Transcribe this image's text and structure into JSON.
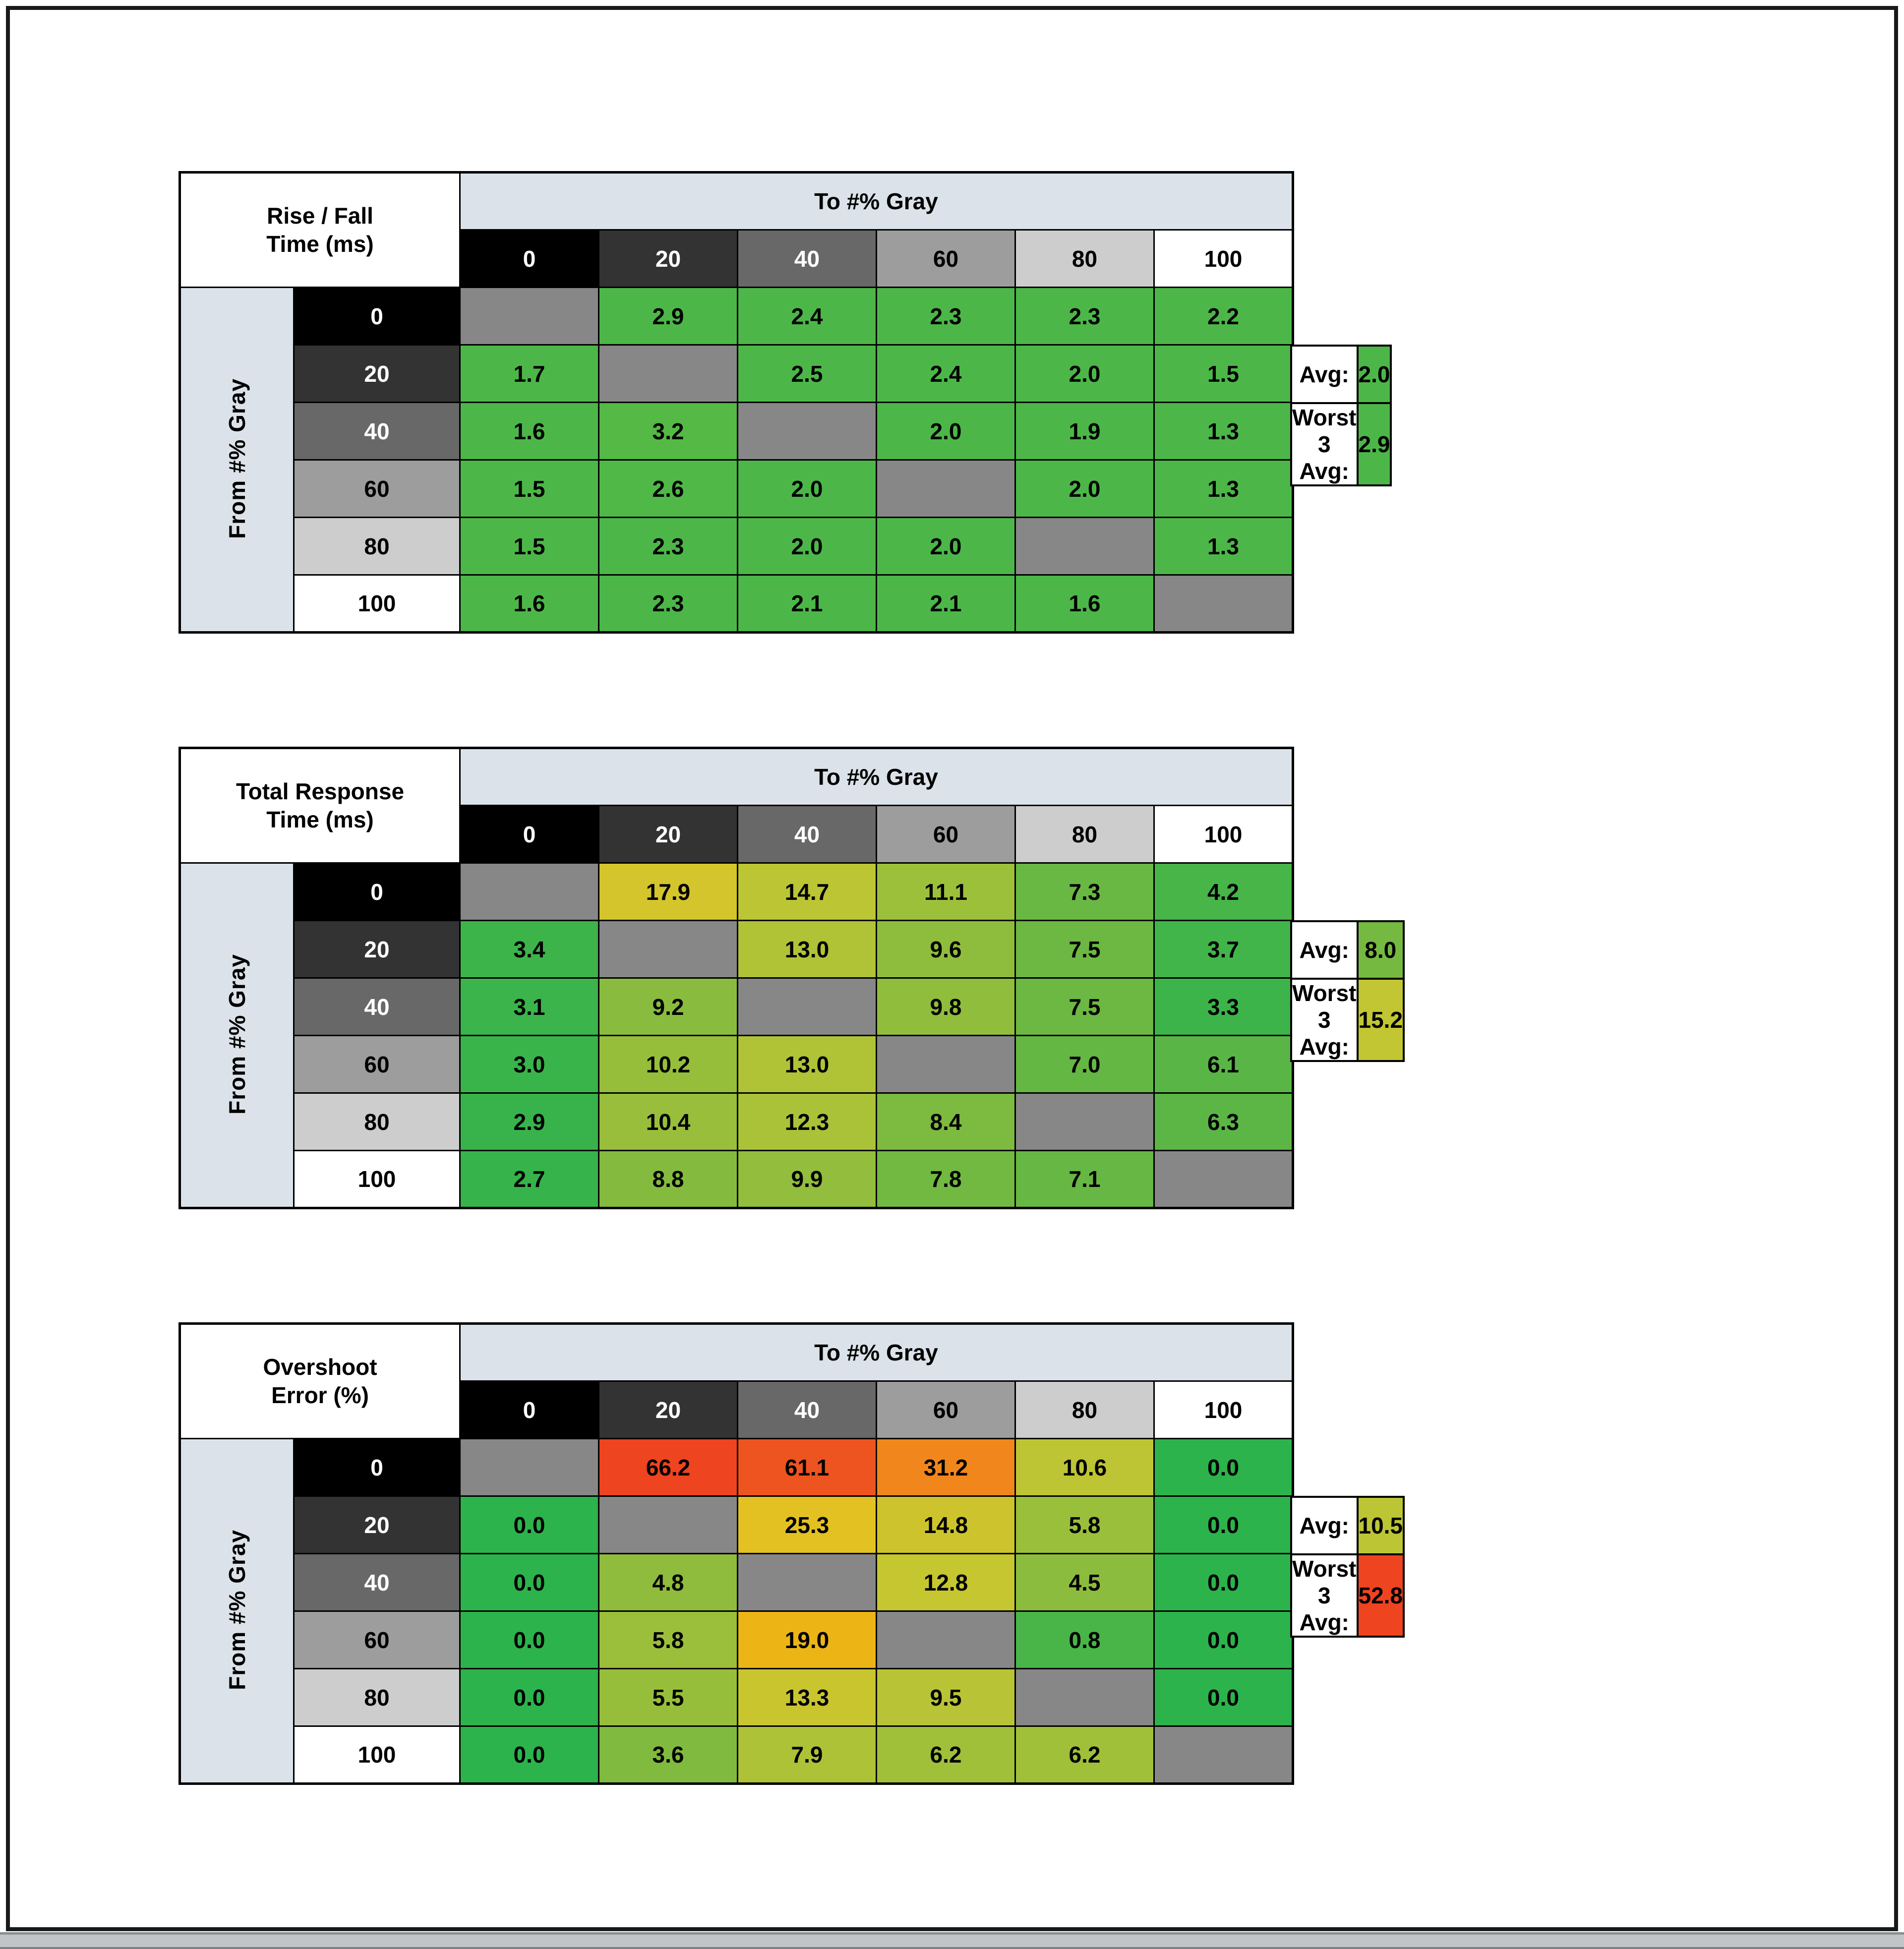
{
  "page": {
    "background": "#ffffff",
    "border_color": "#191919",
    "bottom_bar_color": "#c2c5c7"
  },
  "chart_data": {
    "type": "heatmap",
    "header_bg": "#dbe2e9",
    "diagonal_color": "#878787",
    "gray_levels": [
      "0",
      "20",
      "40",
      "60",
      "80",
      "100"
    ],
    "level_colors": [
      "#000000",
      "#333333",
      "#686868",
      "#9d9d9d",
      "#cdcdcd",
      "#ffffff"
    ],
    "level_text_colors": [
      "#ffffff",
      "#ffffff",
      "#ffffff",
      "#000000",
      "#000000",
      "#000000"
    ],
    "tables": [
      {
        "id": "rise-fall-time",
        "title_lines": [
          "Rise / Fall",
          "Time (ms)"
        ],
        "col_axis": "To #% Gray",
        "row_axis": "From #% Gray",
        "values": [
          [
            null,
            "2.9",
            "2.4",
            "2.3",
            "2.3",
            "2.2"
          ],
          [
            "1.7",
            null,
            "2.5",
            "2.4",
            "2.0",
            "1.5"
          ],
          [
            "1.6",
            "3.2",
            null,
            "2.0",
            "1.9",
            "1.3"
          ],
          [
            "1.5",
            "2.6",
            "2.0",
            null,
            "2.0",
            "1.3"
          ],
          [
            "1.5",
            "2.3",
            "2.0",
            "2.0",
            null,
            "1.3"
          ],
          [
            "1.6",
            "2.3",
            "2.1",
            "2.1",
            "1.6",
            null
          ]
        ],
        "colors": [
          [
            null,
            "#4cb748",
            "#4cb748",
            "#4cb748",
            "#4cb748",
            "#4cb748"
          ],
          [
            "#4cb748",
            null,
            "#4cb748",
            "#4cb748",
            "#4cb748",
            "#4cb748"
          ],
          [
            "#4cb748",
            "#55b945",
            null,
            "#4cb748",
            "#4cb748",
            "#4cb748"
          ],
          [
            "#4cb748",
            "#4fb847",
            "#4cb748",
            null,
            "#4cb748",
            "#4cb748"
          ],
          [
            "#4cb748",
            "#4cb748",
            "#4cb748",
            "#4cb748",
            null,
            "#4cb748"
          ],
          [
            "#4cb748",
            "#4cb748",
            "#4cb748",
            "#4cb748",
            "#4cb748",
            null
          ]
        ],
        "summary": {
          "avg_label": "Avg:",
          "avg_value": "2.0",
          "avg_color": "#4cb748",
          "worst_label": "Worst 3 Avg:",
          "worst_value": "2.9",
          "worst_color": "#4cb748"
        }
      },
      {
        "id": "total-response-time",
        "title_lines": [
          "Total Response",
          "Time (ms)"
        ],
        "col_axis": "To #% Gray",
        "row_axis": "From #% Gray",
        "values": [
          [
            null,
            "17.9",
            "14.7",
            "11.1",
            "7.3",
            "4.2"
          ],
          [
            "3.4",
            null,
            "13.0",
            "9.6",
            "7.5",
            "3.7"
          ],
          [
            "3.1",
            "9.2",
            null,
            "9.8",
            "7.5",
            "3.3"
          ],
          [
            "3.0",
            "10.2",
            "13.0",
            null,
            "7.0",
            "6.1"
          ],
          [
            "2.9",
            "10.4",
            "12.3",
            "8.4",
            null,
            "6.3"
          ],
          [
            "2.7",
            "8.8",
            "9.9",
            "7.8",
            "7.1",
            null
          ]
        ],
        "colors": [
          [
            null,
            "#d3c52b",
            "#bcc533",
            "#9cc03a",
            "#69b843",
            "#47b548"
          ],
          [
            "#3db44a",
            null,
            "#b0c337",
            "#8ebd3d",
            "#6cb842",
            "#41b549"
          ],
          [
            "#3ab44b",
            "#89bc3e",
            null,
            "#91bd3c",
            "#6cb842",
            "#3cb44a"
          ],
          [
            "#39b44b",
            "#96be3b",
            "#b0c337",
            null,
            "#65b744",
            "#59b646"
          ],
          [
            "#38b34b",
            "#98be3b",
            "#aac238",
            "#7cba40",
            null,
            "#5bb646"
          ],
          [
            "#36b34b",
            "#84bb3f",
            "#93bd3c",
            "#71b941",
            "#66b744",
            null
          ]
        ],
        "summary": {
          "avg_label": "Avg:",
          "avg_value": "8.0",
          "avg_color": "#75b941",
          "worst_label": "Worst 3 Avg:",
          "worst_value": "15.2",
          "worst_color": "#c2c632"
        }
      },
      {
        "id": "overshoot-error",
        "title_lines": [
          "Overshoot",
          "Error (%)"
        ],
        "col_axis": "To #% Gray",
        "row_axis": "From #% Gray",
        "values": [
          [
            null,
            "66.2",
            "61.1",
            "31.2",
            "10.6",
            "0.0"
          ],
          [
            "0.0",
            null,
            "25.3",
            "14.8",
            "5.8",
            "0.0"
          ],
          [
            "0.0",
            "4.8",
            null,
            "12.8",
            "4.5",
            "0.0"
          ],
          [
            "0.0",
            "5.8",
            "19.0",
            null,
            "0.8",
            "0.0"
          ],
          [
            "0.0",
            "5.5",
            "13.3",
            "9.5",
            null,
            "0.0"
          ],
          [
            "0.0",
            "3.6",
            "7.9",
            "6.2",
            "6.2",
            null
          ]
        ],
        "colors": [
          [
            null,
            "#ee4420",
            "#ee541f",
            "#f1871c",
            "#bec534",
            "#2cb34c"
          ],
          [
            "#2cb34c",
            null,
            "#e4c122",
            "#cdc42d",
            "#9abf3a",
            "#2cb34c"
          ],
          [
            "#2cb34c",
            "#8fbc3c",
            null,
            "#c6c630",
            "#8cbc3d",
            "#2cb34c"
          ],
          [
            "#2cb34c",
            "#9bbf3a",
            "#ecb515",
            null,
            "#49b548",
            "#2cb34c"
          ],
          [
            "#2cb34c",
            "#97be3b",
            "#c9c52f",
            "#b8c435",
            null,
            "#2cb34c"
          ],
          [
            "#2cb34c",
            "#80ba3f",
            "#aec237",
            "#a0c039",
            "#a0c039",
            null
          ]
        ],
        "summary": {
          "avg_label": "Avg:",
          "avg_value": "10.5",
          "avg_color": "#bcc534",
          "worst_label": "Worst 3 Avg:",
          "worst_value": "52.8",
          "worst_color": "#ee4420"
        }
      }
    ]
  }
}
